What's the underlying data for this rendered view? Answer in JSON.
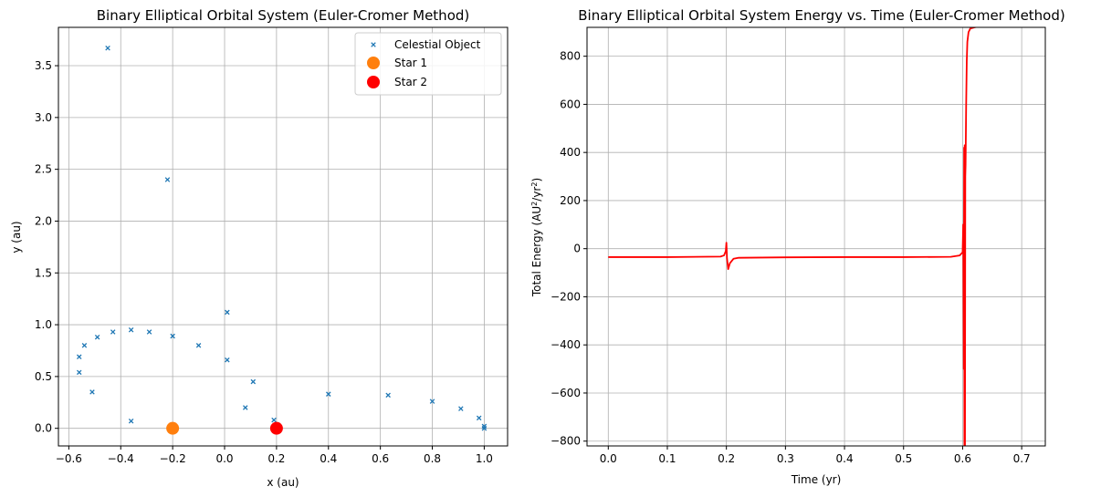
{
  "colors": {
    "object": "#1f77b4",
    "star1": "#ff7f0e",
    "star2": "#ff0000",
    "energy": "#ff0000",
    "grid": "#b0b0b0",
    "axis": "#000000"
  },
  "chart_data": [
    {
      "type": "scatter",
      "title": "Binary Elliptical Orbital System (Euler-Cromer Method)",
      "xlabel": "x (au)",
      "ylabel": "y (au)",
      "xlim": [
        -0.64,
        1.09
      ],
      "ylim": [
        -0.17,
        3.87
      ],
      "xticks": [
        -0.6,
        -0.4,
        -0.2,
        0.0,
        0.2,
        0.4,
        0.6,
        0.8,
        1.0
      ],
      "xtick_labels": [
        "−0.6",
        "−0.4",
        "−0.2",
        "0.0",
        "0.2",
        "0.4",
        "0.6",
        "0.8",
        "1.0"
      ],
      "yticks": [
        0.0,
        0.5,
        1.0,
        1.5,
        2.0,
        2.5,
        3.0,
        3.5
      ],
      "ytick_labels": [
        "0.0",
        "0.5",
        "1.0",
        "1.5",
        "2.0",
        "2.5",
        "3.0",
        "3.5"
      ],
      "grid": true,
      "legend": "top-right",
      "series": [
        {
          "name": "Celestial Object",
          "marker": "x",
          "points": [
            [
              1.0,
              0.0
            ],
            [
              1.0,
              0.02
            ],
            [
              0.98,
              0.1
            ],
            [
              0.91,
              0.19
            ],
            [
              0.8,
              0.26
            ],
            [
              0.63,
              0.32
            ],
            [
              0.4,
              0.33
            ],
            [
              0.11,
              0.45
            ],
            [
              0.01,
              0.66
            ],
            [
              -0.1,
              0.8
            ],
            [
              -0.2,
              0.89
            ],
            [
              -0.29,
              0.93
            ],
            [
              -0.36,
              0.95
            ],
            [
              -0.43,
              0.93
            ],
            [
              -0.49,
              0.88
            ],
            [
              -0.54,
              0.8
            ],
            [
              -0.56,
              0.69
            ],
            [
              -0.56,
              0.54
            ],
            [
              -0.51,
              0.35
            ],
            [
              -0.36,
              0.07
            ],
            [
              0.08,
              0.2
            ],
            [
              0.19,
              0.08
            ],
            [
              0.01,
              1.12
            ],
            [
              -0.22,
              2.4
            ],
            [
              -0.45,
              3.67
            ]
          ]
        },
        {
          "name": "Star 1",
          "marker": "circle",
          "points": [
            [
              -0.2,
              0.0
            ]
          ]
        },
        {
          "name": "Star 2",
          "marker": "circle",
          "points": [
            [
              0.2,
              0.0
            ]
          ]
        }
      ]
    },
    {
      "type": "line",
      "title": "Binary Elliptical Orbital System Energy vs. Time (Euler-Cromer Method)",
      "xlabel": "Time (yr)",
      "ylabel_main": "Total Energy (AU",
      "ylabel_sup1": "2",
      "ylabel_mid": "/yr",
      "ylabel_sup2": "2",
      "ylabel_end": ")",
      "xlim": [
        -0.036,
        0.74
      ],
      "ylim": [
        -820,
        920
      ],
      "xticks": [
        0.0,
        0.1,
        0.2,
        0.3,
        0.4,
        0.5,
        0.6,
        0.7
      ],
      "xtick_labels": [
        "0.0",
        "0.1",
        "0.2",
        "0.3",
        "0.4",
        "0.5",
        "0.6",
        "0.7"
      ],
      "yticks": [
        -800,
        -600,
        -400,
        -200,
        0,
        200,
        400,
        600,
        800
      ],
      "ytick_labels": [
        "−800",
        "−600",
        "−400",
        "−200",
        "0",
        "200",
        "400",
        "600",
        "800"
      ],
      "grid": true,
      "series": [
        {
          "name": "Total Energy",
          "x": [
            0.0,
            0.1,
            0.19,
            0.196,
            0.199,
            0.2,
            0.201,
            0.203,
            0.206,
            0.212,
            0.22,
            0.3,
            0.4,
            0.5,
            0.58,
            0.595,
            0.6,
            0.601,
            0.602,
            0.6025,
            0.603,
            0.6035,
            0.604,
            0.6045,
            0.605,
            0.606,
            0.607,
            0.608,
            0.61,
            0.613,
            0.62,
            0.63
          ],
          "y": [
            -35,
            -35,
            -33,
            -28,
            -10,
            25,
            -40,
            -85,
            -60,
            -42,
            -38,
            -36,
            -35,
            -35,
            -34,
            -28,
            -15,
            100,
            -500,
            420,
            -820,
            430,
            -820,
            300,
            350,
            600,
            780,
            860,
            900,
            915,
            920,
            925
          ]
        }
      ]
    }
  ]
}
